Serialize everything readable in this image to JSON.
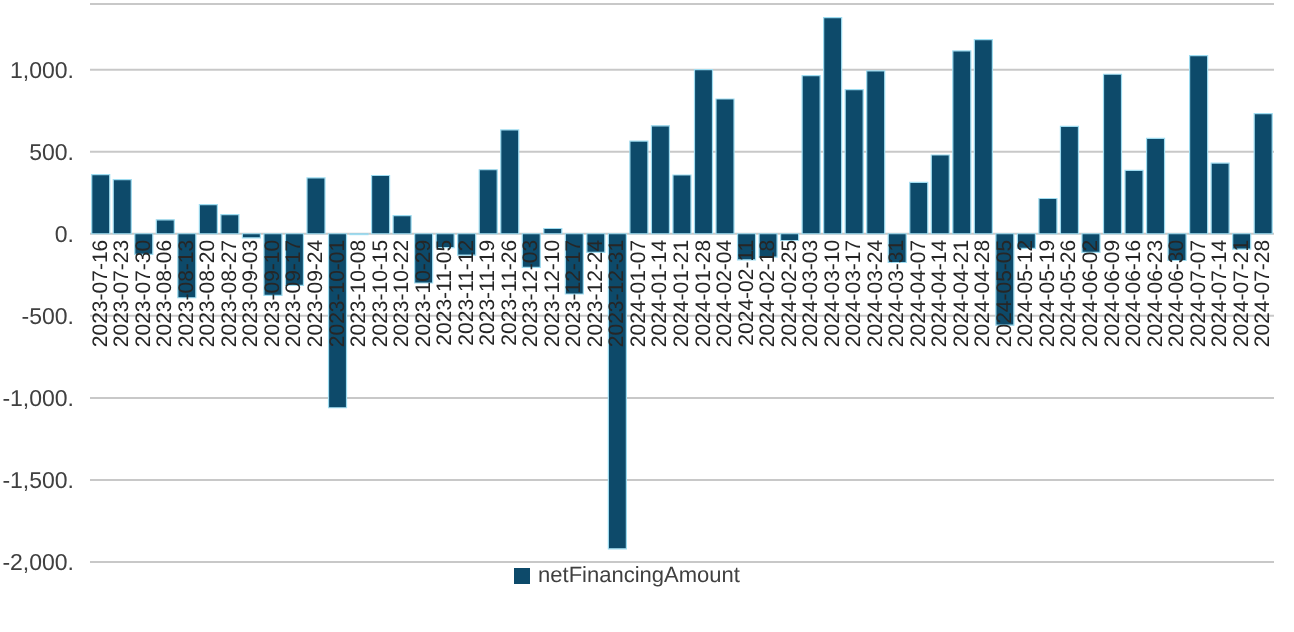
{
  "chart_data": {
    "type": "bar",
    "categories": [
      "2023-07-16",
      "2023-07-23",
      "2023-07-30",
      "2023-08-06",
      "2023-08-13",
      "2023-08-20",
      "2023-08-27",
      "2023-09-03",
      "2023-09-10",
      "2023-09-17",
      "2023-09-24",
      "2023-10-01",
      "2023-10-08",
      "2023-10-15",
      "2023-10-22",
      "2023-10-29",
      "2023-11-05",
      "2023-11-12",
      "2023-11-19",
      "2023-11-26",
      "2023-12-03",
      "2023-12-10",
      "2023-12-17",
      "2023-12-24",
      "2023-12-31",
      "2024-01-07",
      "2024-01-14",
      "2024-01-21",
      "2024-01-28",
      "2024-02-04",
      "2024-02-11",
      "2024-02-18",
      "2024-02-25",
      "2024-03-03",
      "2024-03-10",
      "2024-03-17",
      "2024-03-24",
      "2024-03-31",
      "2024-04-07",
      "2024-04-14",
      "2024-04-21",
      "2024-04-28",
      "2024-05-05",
      "2024-05-12",
      "2024-05-19",
      "2024-05-26",
      "2024-06-02",
      "2024-06-09",
      "2024-06-16",
      "2024-06-23",
      "2024-06-30",
      "2024-07-07",
      "2024-07-14",
      "2024-07-21",
      "2024-07-28"
    ],
    "series": [
      {
        "name": "netFinancingAmount",
        "color": "#0d4a6a",
        "values": [
          360,
          330,
          -125,
          85,
          -390,
          177,
          117,
          -25,
          -375,
          -315,
          340,
          -1060,
          -5,
          355,
          110,
          -300,
          -85,
          -130,
          390,
          633,
          -205,
          32,
          -367,
          -113,
          -1920,
          565,
          658,
          358,
          1000,
          821,
          -159,
          -142,
          -41,
          963,
          1317,
          878,
          992,
          -175,
          313,
          480,
          1114,
          1183,
          -557,
          -89,
          215,
          654,
          -114,
          972,
          386,
          581,
          -163,
          1085,
          431,
          -93,
          732
        ]
      }
    ],
    "ylim": [
      -2000,
      1400
    ],
    "yticks": [
      {
        "value": -2000,
        "label": "-2,000."
      },
      {
        "value": -1500,
        "label": "-1,500."
      },
      {
        "value": -1000,
        "label": "-1,000."
      },
      {
        "value": -500,
        "label": "-500."
      },
      {
        "value": 0,
        "label": "0."
      },
      {
        "value": 500,
        "label": "500."
      },
      {
        "value": 1000,
        "label": "1,000."
      }
    ],
    "grid": "y",
    "legend": "bottom"
  }
}
